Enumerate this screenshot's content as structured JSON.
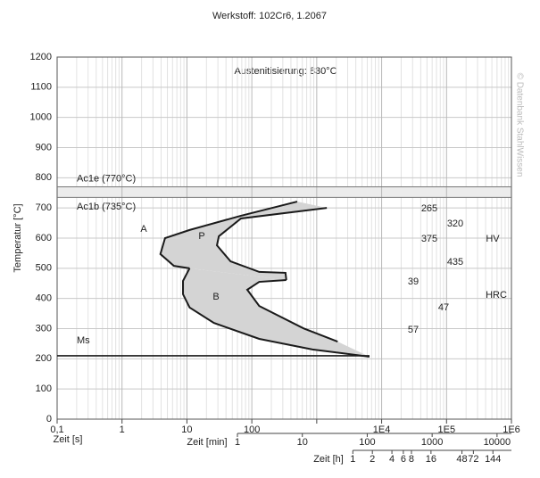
{
  "chart_data": {
    "type": "line",
    "title": "Werkstoff: 102Cr6, 1.2067",
    "subtitle": "Austenitisierung: 830°C",
    "watermark": "© Datenbank StahlWissen",
    "x_label": "Zeit [s]",
    "y_label": "Temperatur [°C]",
    "log_x": true,
    "grid": true,
    "minor_grid": true,
    "xlim": [
      0.1,
      1000000
    ],
    "ylim": [
      0,
      1200
    ],
    "xticks": [
      {
        "value": 0.1,
        "label": "0,1"
      },
      1,
      10,
      100,
      {
        "value": 1000,
        "label": ""
      },
      {
        "value": 10000,
        "label": "1E4"
      },
      {
        "value": 100000,
        "label": "1E5"
      },
      {
        "value": 1000000,
        "label": "1E6"
      }
    ],
    "yticks": [
      0,
      100,
      200,
      300,
      400,
      500,
      600,
      700,
      800,
      900,
      1000,
      1100,
      1200
    ],
    "min_axis": {
      "label": "Zeit [min]",
      "ticks": [
        1,
        10,
        100,
        1000,
        10000
      ]
    },
    "hour_axis": {
      "label": "Zeit [h]",
      "ticks": [
        1,
        2,
        4,
        6,
        8,
        16,
        48,
        72,
        144
      ]
    },
    "reference_lines": [
      {
        "label": "Ac1e (770°C)",
        "value": 770
      },
      {
        "label": "Ac1b (735°C)",
        "value": 735
      },
      {
        "label": "Ms",
        "value": 210
      }
    ],
    "band_color": "#ececec",
    "fill": "#d4d4d4",
    "color": "#1a1a1a",
    "regions": [
      "A",
      "P",
      "B"
    ],
    "series": [
      {
        "x": [
          500,
          68,
          11,
          4.6,
          3.9,
          6.3,
          11
        ],
        "values": [
          721,
          674,
          627,
          600,
          547,
          508,
          500
        ]
      },
      {
        "x": [
          1430,
          68,
          31,
          29,
          47,
          130,
          330,
          340
        ],
        "values": [
          700,
          665,
          606,
          576,
          523,
          488,
          485,
          461
        ]
      },
      {
        "x": [
          11,
          8.7,
          8.7,
          11,
          26,
          130,
          860,
          6500
        ],
        "values": [
          500,
          458,
          414,
          370,
          319,
          266,
          231,
          207
        ]
      },
      {
        "x": [
          340,
          130,
          85,
          130,
          625,
          2100
        ],
        "values": [
          461,
          455,
          429,
          375,
          301,
          257
        ]
      }
    ],
    "hardness": {
      "HV": {
        "label": "HV",
        "values": [
          265,
          320,
          375,
          435
        ]
      },
      "HRC": {
        "label": "HRC",
        "values": [
          39,
          47,
          57
        ]
      }
    }
  }
}
